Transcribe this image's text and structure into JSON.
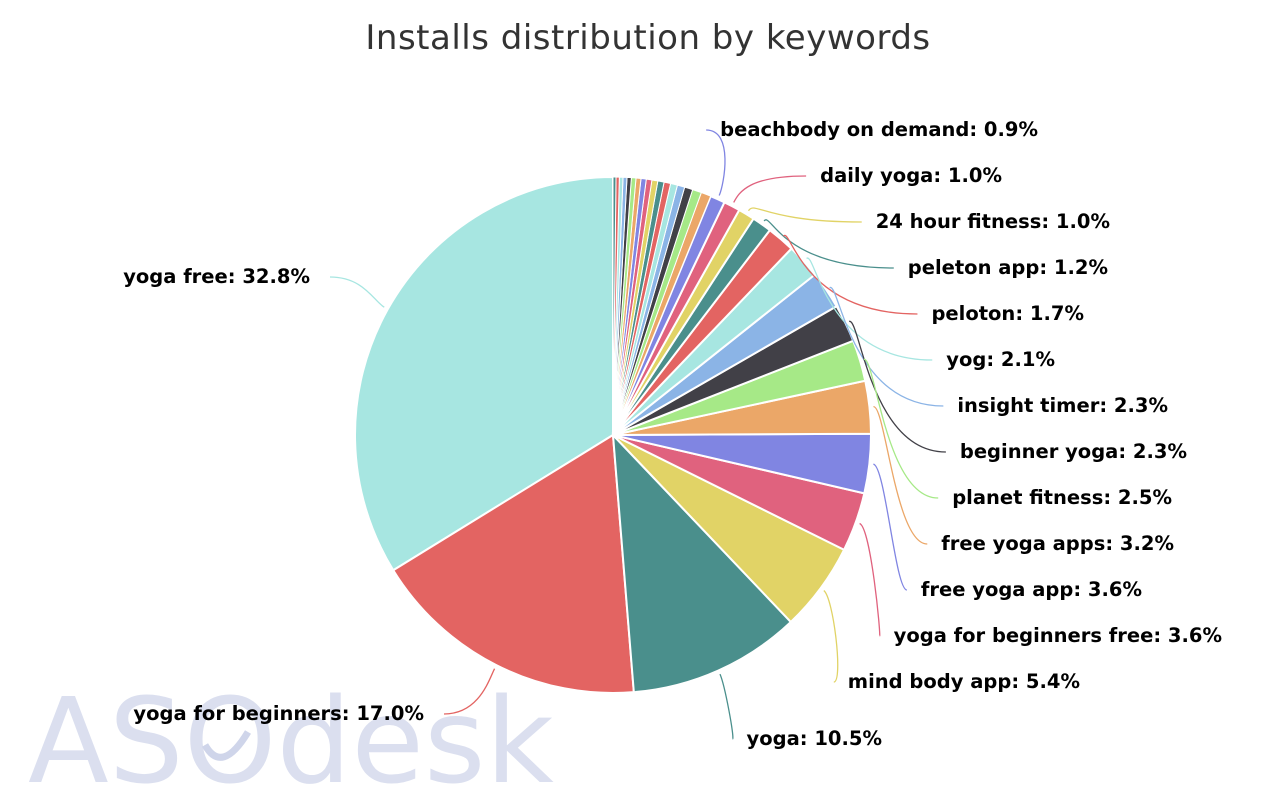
{
  "chart_data": {
    "type": "pie",
    "title": "Installs distribution by keywords",
    "slices": [
      {
        "label": "yoga free",
        "value": 32.8,
        "display": "32.8%",
        "color": "#a7e6e1"
      },
      {
        "label": "yoga for beginners",
        "value": 17.0,
        "display": "17.0%",
        "color": "#e36462"
      },
      {
        "label": "yoga",
        "value": 10.5,
        "display": "10.5%",
        "color": "#4a8f8c"
      },
      {
        "label": "mind body app",
        "value": 5.4,
        "display": "5.4%",
        "color": "#e1d366"
      },
      {
        "label": "yoga for beginners free",
        "value": 3.6,
        "display": "3.6%",
        "color": "#e0627e"
      },
      {
        "label": "free yoga app",
        "value": 3.6,
        "display": "3.6%",
        "color": "#8085e2"
      },
      {
        "label": "free yoga apps",
        "value": 3.2,
        "display": "3.2%",
        "color": "#eba768"
      },
      {
        "label": "planet fitness",
        "value": 2.5,
        "display": "2.5%",
        "color": "#a6e987"
      },
      {
        "label": "beginner yoga",
        "value": 2.3,
        "display": "2.3%",
        "color": "#414047"
      },
      {
        "label": "insight timer",
        "value": 2.3,
        "display": "2.3%",
        "color": "#8bb4e6"
      },
      {
        "label": "yog",
        "value": 2.1,
        "display": "2.1%",
        "color": "#a7e6e1"
      },
      {
        "label": "peloton",
        "value": 1.7,
        "display": "1.7%",
        "color": "#e36462"
      },
      {
        "label": "peleton app",
        "value": 1.2,
        "display": "1.2%",
        "color": "#4a8f8c"
      },
      {
        "label": "24 hour fitness",
        "value": 1.0,
        "display": "1.0%",
        "color": "#e1d366"
      },
      {
        "label": "daily yoga",
        "value": 1.0,
        "display": "1.0%",
        "color": "#e0627e"
      },
      {
        "label": "beachbody on demand",
        "value": 0.9,
        "display": "0.9%",
        "color": "#8085e2"
      }
    ],
    "small_slices": [
      0.6,
      0.55,
      0.5,
      0.45,
      0.42,
      0.4,
      0.38,
      0.36,
      0.34,
      0.32,
      0.3,
      0.28,
      0.26,
      0.24,
      0.22,
      0.2,
      0.18
    ],
    "small_slice_colors": [
      "#eba768",
      "#a6e987",
      "#414047",
      "#8bb4e6",
      "#a7e6e1",
      "#e36462",
      "#4a8f8c",
      "#e1d366",
      "#e0627e",
      "#8085e2",
      "#eba768",
      "#a6e987",
      "#414047",
      "#8bb4e6",
      "#a7e6e1",
      "#e36462",
      "#4a8f8c"
    ]
  },
  "watermark": "ASOdesk"
}
